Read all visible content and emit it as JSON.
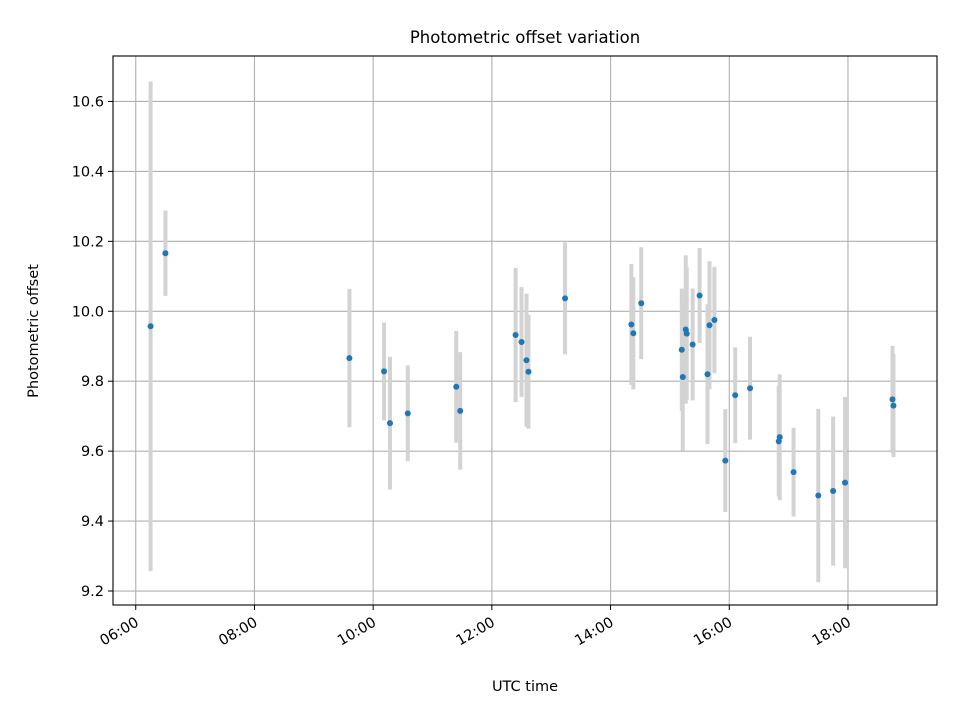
{
  "chart_data": {
    "type": "scatter",
    "title": "Photometric offset variation",
    "xlabel": "UTC time",
    "ylabel": "Photometric offset",
    "xlim": [
      "05:37",
      "19:30"
    ],
    "ylim": [
      9.16,
      10.73
    ],
    "xticks": [
      "06:00",
      "08:00",
      "10:00",
      "12:00",
      "14:00",
      "16:00",
      "18:00"
    ],
    "yticks": [
      9.2,
      9.4,
      9.6,
      9.8,
      10.0,
      10.2,
      10.4,
      10.6
    ],
    "grid": true,
    "colors": {
      "point": "#1f77b4",
      "errorbar": "#d3d3d3",
      "grid": "#b0b0b0"
    },
    "points": [
      {
        "t": "06:15",
        "y": 9.957,
        "err": 0.7
      },
      {
        "t": "06:30",
        "y": 10.166,
        "err": 0.122
      },
      {
        "t": "09:36",
        "y": 9.866,
        "err": 0.198
      },
      {
        "t": "10:11",
        "y": 9.828,
        "err": 0.14
      },
      {
        "t": "10:17",
        "y": 9.68,
        "err": 0.19
      },
      {
        "t": "10:35",
        "y": 9.708,
        "err": 0.137
      },
      {
        "t": "11:24",
        "y": 9.784,
        "err": 0.16
      },
      {
        "t": "11:28",
        "y": 9.715,
        "err": 0.168
      },
      {
        "t": "12:24",
        "y": 9.932,
        "err": 0.192
      },
      {
        "t": "12:30",
        "y": 9.912,
        "err": 0.157
      },
      {
        "t": "12:35",
        "y": 9.86,
        "err": 0.19
      },
      {
        "t": "12:37",
        "y": 9.827,
        "err": 0.163
      },
      {
        "t": "13:14",
        "y": 10.037,
        "err": 0.16
      },
      {
        "t": "14:21",
        "y": 9.962,
        "err": 0.173
      },
      {
        "t": "14:23",
        "y": 9.937,
        "err": 0.16
      },
      {
        "t": "14:31",
        "y": 10.023,
        "err": 0.16
      },
      {
        "t": "15:12",
        "y": 9.89,
        "err": 0.175
      },
      {
        "t": "15:13",
        "y": 9.812,
        "err": 0.21
      },
      {
        "t": "15:16",
        "y": 9.948,
        "err": 0.212
      },
      {
        "t": "15:17",
        "y": 9.936,
        "err": 0.19
      },
      {
        "t": "15:23",
        "y": 9.905,
        "err": 0.16
      },
      {
        "t": "15:30",
        "y": 10.045,
        "err": 0.136
      },
      {
        "t": "15:38",
        "y": 9.82,
        "err": 0.2
      },
      {
        "t": "15:40",
        "y": 9.96,
        "err": 0.183
      },
      {
        "t": "15:45",
        "y": 9.975,
        "err": 0.152
      },
      {
        "t": "15:56",
        "y": 9.573,
        "err": 0.147
      },
      {
        "t": "16:06",
        "y": 9.76,
        "err": 0.137
      },
      {
        "t": "16:21",
        "y": 9.78,
        "err": 0.147
      },
      {
        "t": "16:50",
        "y": 9.628,
        "err": 0.158
      },
      {
        "t": "16:51",
        "y": 9.64,
        "err": 0.18
      },
      {
        "t": "17:05",
        "y": 9.54,
        "err": 0.127
      },
      {
        "t": "17:30",
        "y": 9.473,
        "err": 0.248
      },
      {
        "t": "17:45",
        "y": 9.486,
        "err": 0.213
      },
      {
        "t": "17:57",
        "y": 9.51,
        "err": 0.245
      },
      {
        "t": "18:45",
        "y": 9.748,
        "err": 0.153
      },
      {
        "t": "18:46",
        "y": 9.73,
        "err": 0.147
      }
    ]
  }
}
